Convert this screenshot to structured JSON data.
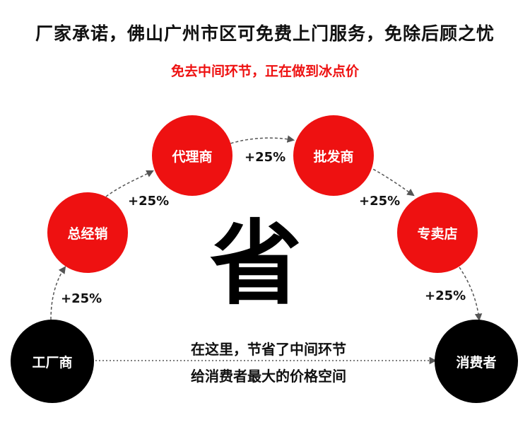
{
  "header": {
    "title": "厂家承诺，佛山广州市区可免费上门服务，免除后顾之忧",
    "subtitle": "免去中间环节，正在做到冰点价"
  },
  "nodes": {
    "factory": "工厂商",
    "general_distributor": "总经销",
    "agent": "代理商",
    "wholesaler": "批发商",
    "store": "专卖店",
    "consumer": "消费者"
  },
  "markups": [
    "+25%",
    "+25%",
    "+25%",
    "+25%",
    "+25%"
  ],
  "center_char": "省",
  "note": {
    "line1": "在这里，节省了中间环节",
    "line2": "给消费者最大的价格空间"
  },
  "colors": {
    "red": "#ee1111",
    "black": "#000000",
    "text": "#111111",
    "arrow": "#555555"
  }
}
